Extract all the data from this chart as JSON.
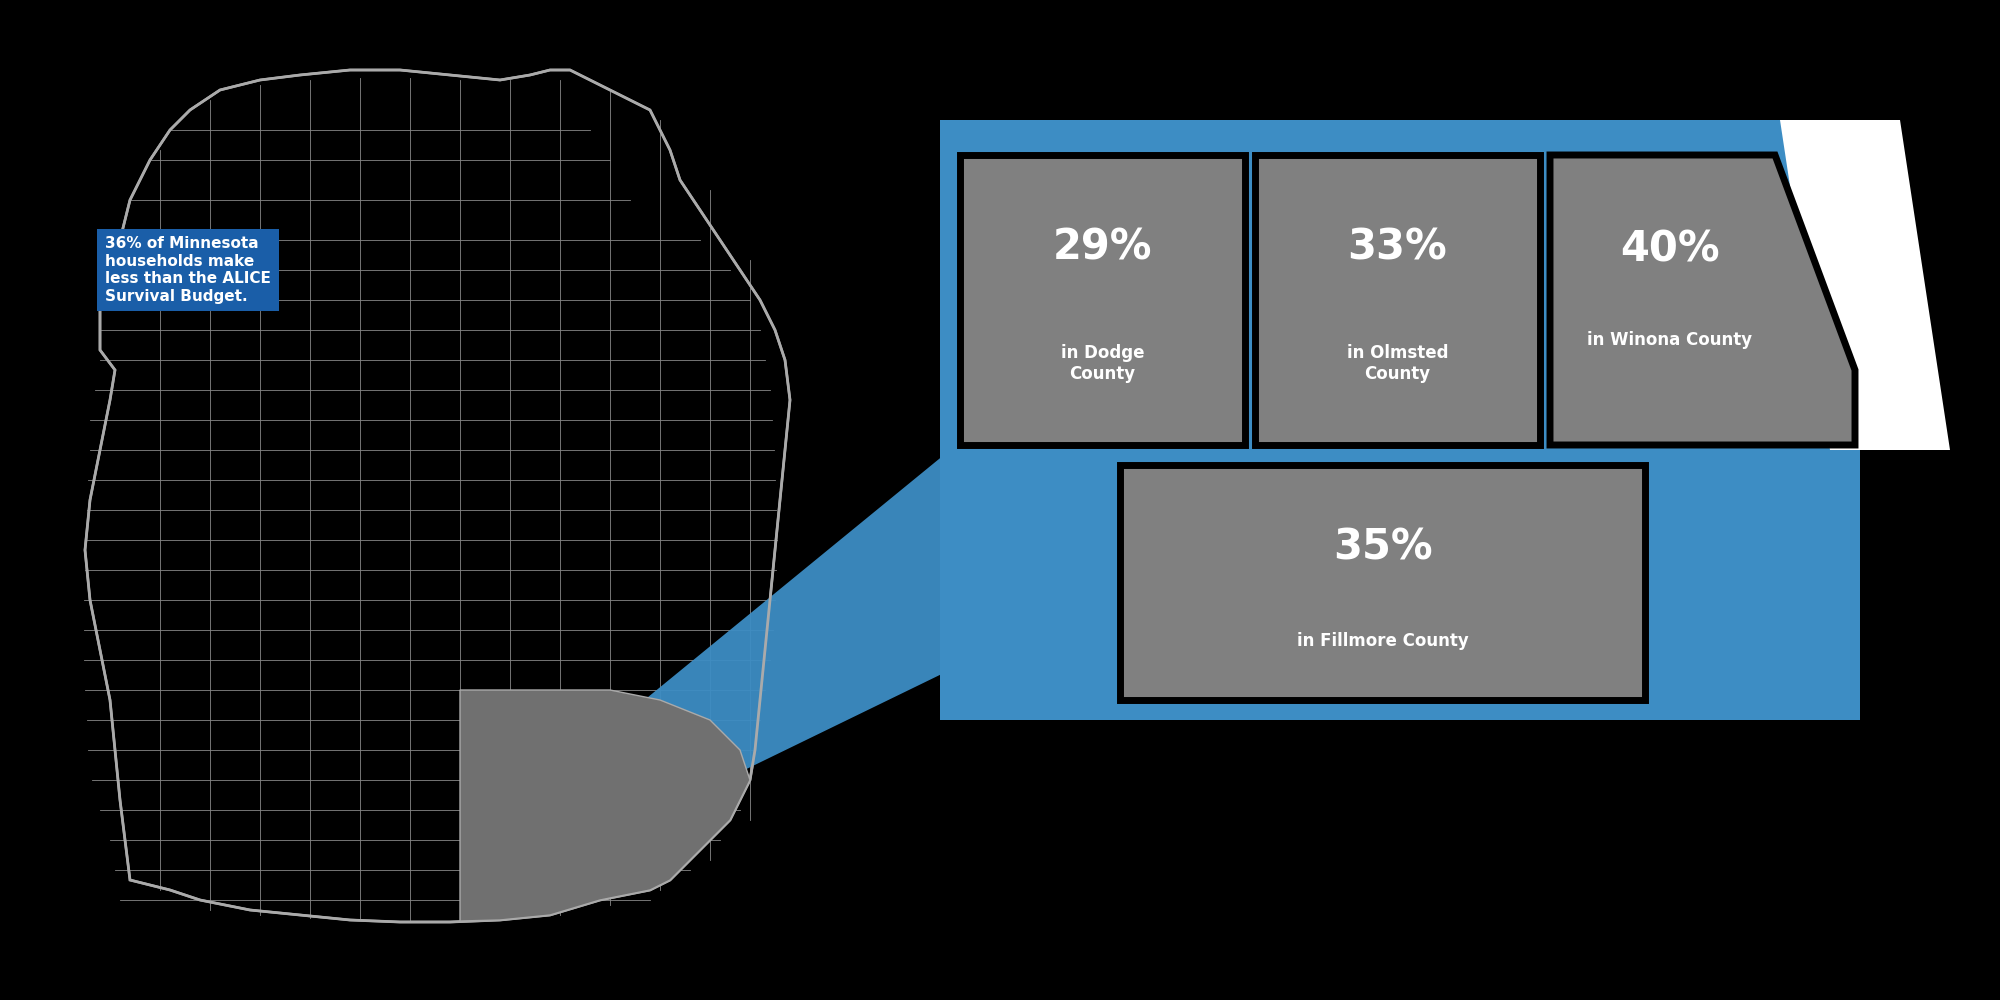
{
  "bg_color": "#000000",
  "blue_box_color": "#1a5ea8",
  "blue_panel_color": "#3d8dc4",
  "gray_box_color": "#808080",
  "white_color": "#ffffff",
  "black_color": "#000000",
  "text_box_text": "36% of Minnesota\nhouseholds make\nless than the ALICE\nSurvival Budget.",
  "counties": [
    {
      "pct": "29%",
      "label": "in Dodge\nCounty"
    },
    {
      "pct": "33%",
      "label": "in Olmsted\nCounty"
    },
    {
      "pct": "40%",
      "label": "in Winona County"
    },
    {
      "pct": "35%",
      "label": "in Fillmore County"
    }
  ]
}
